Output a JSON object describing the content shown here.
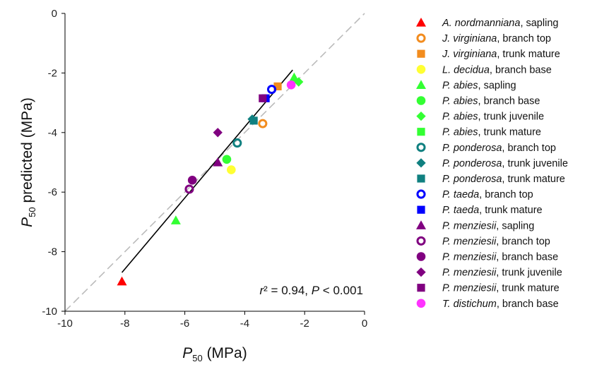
{
  "chart_data": {
    "type": "scatter",
    "xlabel": "P50 (MPa)",
    "ylabel": "P50 predicted (MPa)",
    "xlim": [
      -10,
      0
    ],
    "ylim": [
      -10,
      0
    ],
    "x_ticks": [
      -10,
      -8,
      -6,
      -4,
      -2,
      0
    ],
    "y_ticks": [
      0,
      -2,
      -4,
      -6,
      -8,
      -10
    ],
    "reference_line": {
      "style": "dashed",
      "color": "#bbbbbb",
      "slope": 1,
      "intercept": 0
    },
    "regression_line": {
      "color": "#000000",
      "x_start": -8.1,
      "y_start": -8.7,
      "x_end": -2.4,
      "y_end": -1.9
    },
    "annotation": {
      "parts": [
        {
          "text": "r",
          "italic": true
        },
        {
          "text": "² = 0.94, ",
          "italic": false
        },
        {
          "text": "P",
          "italic": true
        },
        {
          "text": " < 0.001",
          "italic": false
        }
      ]
    },
    "grid": false,
    "legend_position": "right",
    "series": [
      {
        "species": "A. nordmanniana",
        "organ": "sapling",
        "color": "#ff0000",
        "marker": "triangle",
        "filled": true,
        "points": [
          {
            "x": -8.1,
            "y": -9.0
          }
        ]
      },
      {
        "species": "J. virginiana",
        "organ": "branch top",
        "color": "#f28c1e",
        "marker": "circle",
        "filled": false,
        "points": [
          {
            "x": -3.4,
            "y": -3.7
          }
        ]
      },
      {
        "species": "J. virginiana",
        "organ": "trunk mature",
        "color": "#f28c1e",
        "marker": "square",
        "filled": true,
        "points": [
          {
            "x": -2.9,
            "y": -2.45
          }
        ]
      },
      {
        "species": "L. decidua",
        "organ": "branch base",
        "color": "#ffff33",
        "marker": "circle",
        "filled": true,
        "points": [
          {
            "x": -4.45,
            "y": -5.25
          }
        ]
      },
      {
        "species": "P. abies",
        "organ": "sapling",
        "color": "#33ff33",
        "marker": "triangle",
        "filled": true,
        "points": [
          {
            "x": -6.3,
            "y": -6.95
          },
          {
            "x": -2.35,
            "y": -2.15
          }
        ]
      },
      {
        "species": "P. abies",
        "organ": "branch base",
        "color": "#33ff33",
        "marker": "circle",
        "filled": true,
        "points": [
          {
            "x": -4.6,
            "y": -4.9
          }
        ]
      },
      {
        "species": "P. abies",
        "organ": "trunk juvenile",
        "color": "#33ff33",
        "marker": "diamond",
        "filled": true,
        "points": [
          {
            "x": -2.2,
            "y": -2.3
          }
        ]
      },
      {
        "species": "P. abies",
        "organ": "trunk mature",
        "color": "#33ff33",
        "marker": "square",
        "filled": true,
        "points": []
      },
      {
        "species": "P. ponderosa",
        "organ": "branch top",
        "color": "#108080",
        "marker": "circle",
        "filled": false,
        "points": [
          {
            "x": -4.25,
            "y": -4.35
          }
        ]
      },
      {
        "species": "P. ponderosa",
        "organ": "trunk juvenile",
        "color": "#108080",
        "marker": "diamond",
        "filled": true,
        "points": [
          {
            "x": -3.75,
            "y": -3.55
          }
        ]
      },
      {
        "species": "P. ponderosa",
        "organ": "trunk mature",
        "color": "#108080",
        "marker": "square",
        "filled": true,
        "points": [
          {
            "x": -3.7,
            "y": -3.6
          }
        ]
      },
      {
        "species": "P. taeda",
        "organ": "branch top",
        "color": "#0000ff",
        "marker": "circle",
        "filled": false,
        "points": [
          {
            "x": -3.1,
            "y": -2.55
          }
        ]
      },
      {
        "species": "P. taeda",
        "organ": "trunk mature",
        "color": "#0000ff",
        "marker": "square",
        "filled": true,
        "points": [
          {
            "x": -3.3,
            "y": -2.85
          }
        ]
      },
      {
        "species": "P. menziesii",
        "organ": "sapling",
        "color": "#800080",
        "marker": "triangle",
        "filled": true,
        "points": [
          {
            "x": -4.9,
            "y": -5.0
          }
        ]
      },
      {
        "species": "P. menziesii",
        "organ": "branch top",
        "color": "#800080",
        "marker": "circle",
        "filled": false,
        "points": [
          {
            "x": -5.85,
            "y": -5.9
          }
        ]
      },
      {
        "species": "P. menziesii",
        "organ": "branch base",
        "color": "#800080",
        "marker": "circle",
        "filled": true,
        "points": [
          {
            "x": -5.75,
            "y": -5.6
          }
        ]
      },
      {
        "species": "P. menziesii",
        "organ": "trunk juvenile",
        "color": "#800080",
        "marker": "diamond",
        "filled": true,
        "points": [
          {
            "x": -4.9,
            "y": -4.0
          }
        ]
      },
      {
        "species": "P. menziesii",
        "organ": "trunk mature",
        "color": "#800080",
        "marker": "square",
        "filled": true,
        "points": [
          {
            "x": -3.4,
            "y": -2.85
          }
        ]
      },
      {
        "species": "T. distichum",
        "organ": "branch base",
        "color": "#ff33ff",
        "marker": "circle",
        "filled": true,
        "points": [
          {
            "x": -2.45,
            "y": -2.4
          }
        ]
      }
    ]
  }
}
